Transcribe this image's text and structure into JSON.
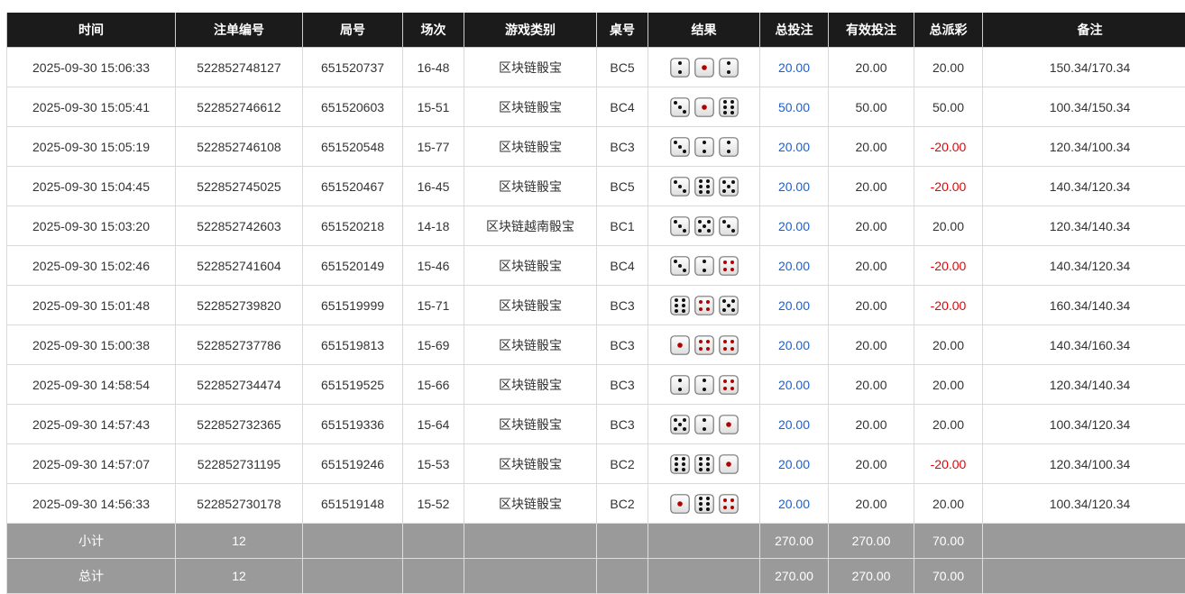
{
  "headers": [
    "时间",
    "注单编号",
    "局号",
    "场次",
    "游戏类别",
    "桌号",
    "结果",
    "总投注",
    "有效投注",
    "总派彩",
    "备注"
  ],
  "rows": [
    [
      "2025-09-30 15:06:33",
      "522852748127",
      "651520737",
      "16-48",
      "区块链骰宝",
      "BC5",
      [
        2,
        1,
        2
      ],
      "20.00",
      "20.00",
      "20.00",
      "150.34/170.34"
    ],
    [
      "2025-09-30 15:05:41",
      "522852746612",
      "651520603",
      "15-51",
      "区块链骰宝",
      "BC4",
      [
        3,
        1,
        6
      ],
      "50.00",
      "50.00",
      "50.00",
      "100.34/150.34"
    ],
    [
      "2025-09-30 15:05:19",
      "522852746108",
      "651520548",
      "15-77",
      "区块链骰宝",
      "BC3",
      [
        3,
        2,
        2
      ],
      "20.00",
      "20.00",
      "-20.00",
      "120.34/100.34"
    ],
    [
      "2025-09-30 15:04:45",
      "522852745025",
      "651520467",
      "16-45",
      "区块链骰宝",
      "BC5",
      [
        3,
        6,
        5
      ],
      "20.00",
      "20.00",
      "-20.00",
      "140.34/120.34"
    ],
    [
      "2025-09-30 15:03:20",
      "522852742603",
      "651520218",
      "14-18",
      "区块链越南骰宝",
      "BC1",
      [
        3,
        5,
        3
      ],
      "20.00",
      "20.00",
      "20.00",
      "120.34/140.34"
    ],
    [
      "2025-09-30 15:02:46",
      "522852741604",
      "651520149",
      "15-46",
      "区块链骰宝",
      "BC4",
      [
        3,
        2,
        4
      ],
      "20.00",
      "20.00",
      "-20.00",
      "140.34/120.34"
    ],
    [
      "2025-09-30 15:01:48",
      "522852739820",
      "651519999",
      "15-71",
      "区块链骰宝",
      "BC3",
      [
        6,
        4,
        5
      ],
      "20.00",
      "20.00",
      "-20.00",
      "160.34/140.34"
    ],
    [
      "2025-09-30 15:00:38",
      "522852737786",
      "651519813",
      "15-69",
      "区块链骰宝",
      "BC3",
      [
        1,
        4,
        4
      ],
      "20.00",
      "20.00",
      "20.00",
      "140.34/160.34"
    ],
    [
      "2025-09-30 14:58:54",
      "522852734474",
      "651519525",
      "15-66",
      "区块链骰宝",
      "BC3",
      [
        2,
        2,
        4
      ],
      "20.00",
      "20.00",
      "20.00",
      "120.34/140.34"
    ],
    [
      "2025-09-30 14:57:43",
      "522852732365",
      "651519336",
      "15-64",
      "区块链骰宝",
      "BC3",
      [
        5,
        2,
        1
      ],
      "20.00",
      "20.00",
      "20.00",
      "100.34/120.34"
    ],
    [
      "2025-09-30 14:57:07",
      "522852731195",
      "651519246",
      "15-53",
      "区块链骰宝",
      "BC2",
      [
        6,
        6,
        1
      ],
      "20.00",
      "20.00",
      "-20.00",
      "120.34/100.34"
    ],
    [
      "2025-09-30 14:56:33",
      "522852730178",
      "651519148",
      "15-52",
      "区块链骰宝",
      "BC2",
      [
        1,
        6,
        4
      ],
      "20.00",
      "20.00",
      "20.00",
      "100.34/120.34"
    ]
  ],
  "subtotal": {
    "label": "小计",
    "count": "12",
    "total_bet": "270.00",
    "valid_bet": "270.00",
    "payout": "70.00"
  },
  "total": {
    "label": "总计",
    "count": "12",
    "total_bet": "270.00",
    "valid_bet": "270.00",
    "payout": "70.00"
  },
  "colors": {
    "bet": "#1a5fcf",
    "negative": "#e00000",
    "header": "#1b1b1b",
    "footer": "#9a9a9a",
    "red_pip": "#b00000"
  }
}
